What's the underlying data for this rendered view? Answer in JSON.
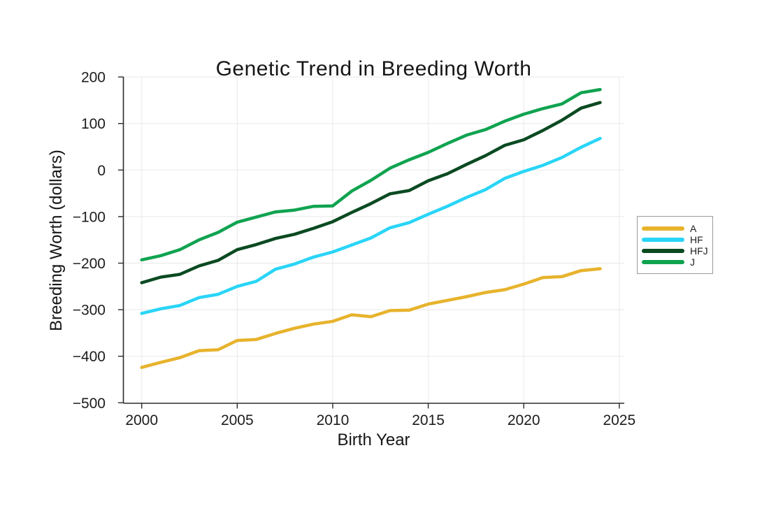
{
  "chart_data": {
    "type": "line",
    "title": "Genetic Trend in Breeding Worth",
    "xlabel": "Birth Year",
    "ylabel": "Breeding Worth (dollars)",
    "x": [
      2000,
      2001,
      2002,
      2003,
      2004,
      2005,
      2006,
      2007,
      2008,
      2009,
      2010,
      2011,
      2012,
      2013,
      2014,
      2015,
      2016,
      2017,
      2018,
      2019,
      2020,
      2021,
      2022,
      2023,
      2024
    ],
    "series": [
      {
        "name": "A",
        "color": "#E7B32C",
        "values": [
          -424,
          -413,
          -403,
          -388,
          -386,
          -366,
          -364,
          -351,
          -340,
          -331,
          -325,
          -311,
          -315,
          -302,
          -301,
          -288,
          -280,
          -272,
          -263,
          -257,
          -245,
          -231,
          -229,
          -216,
          -212
        ]
      },
      {
        "name": "HF",
        "color": "#29D5F7",
        "values": [
          -308,
          -298,
          -291,
          -274,
          -267,
          -250,
          -239,
          -213,
          -202,
          -187,
          -176,
          -161,
          -146,
          -124,
          -113,
          -95,
          -78,
          -59,
          -42,
          -18,
          -3,
          10,
          27,
          49,
          68
        ]
      },
      {
        "name": "HFJ",
        "color": "#0B4A21",
        "values": [
          -242,
          -230,
          -224,
          -206,
          -194,
          -171,
          -160,
          -147,
          -138,
          -125,
          -111,
          -91,
          -72,
          -51,
          -44,
          -23,
          -8,
          12,
          31,
          53,
          65,
          85,
          107,
          133,
          145
        ]
      },
      {
        "name": "J",
        "color": "#10A350",
        "values": [
          -193,
          -184,
          -171,
          -150,
          -134,
          -112,
          -101,
          -90,
          -86,
          -78,
          -77,
          -45,
          -22,
          4,
          22,
          38,
          57,
          75,
          87,
          105,
          120,
          132,
          142,
          166,
          173
        ]
      }
    ],
    "xlim": [
      1999,
      2025.3
    ],
    "ylim": [
      -500,
      200
    ],
    "x_ticks": [
      2000,
      2005,
      2010,
      2015,
      2020,
      2025
    ],
    "x_tick_labels": [
      "2000",
      "2005",
      "2010",
      "2015",
      "2020",
      "2025"
    ],
    "y_ticks": [
      200,
      100,
      0,
      -100,
      -200,
      -300,
      -400,
      -500
    ],
    "y_tick_labels": [
      "200",
      "100",
      "0",
      "−100",
      "−200",
      "−300",
      "−400",
      "−500"
    ],
    "grid": true,
    "legend_position": "right",
    "colors": {
      "grid": "#ececec",
      "spine": "#2b2b2b",
      "tick": "#2b2b2b",
      "text": "#1c1c1c",
      "background": "#ffffff"
    }
  },
  "legend": {
    "items": [
      {
        "label": "A"
      },
      {
        "label": "HF"
      },
      {
        "label": "HFJ"
      },
      {
        "label": "J"
      }
    ]
  }
}
